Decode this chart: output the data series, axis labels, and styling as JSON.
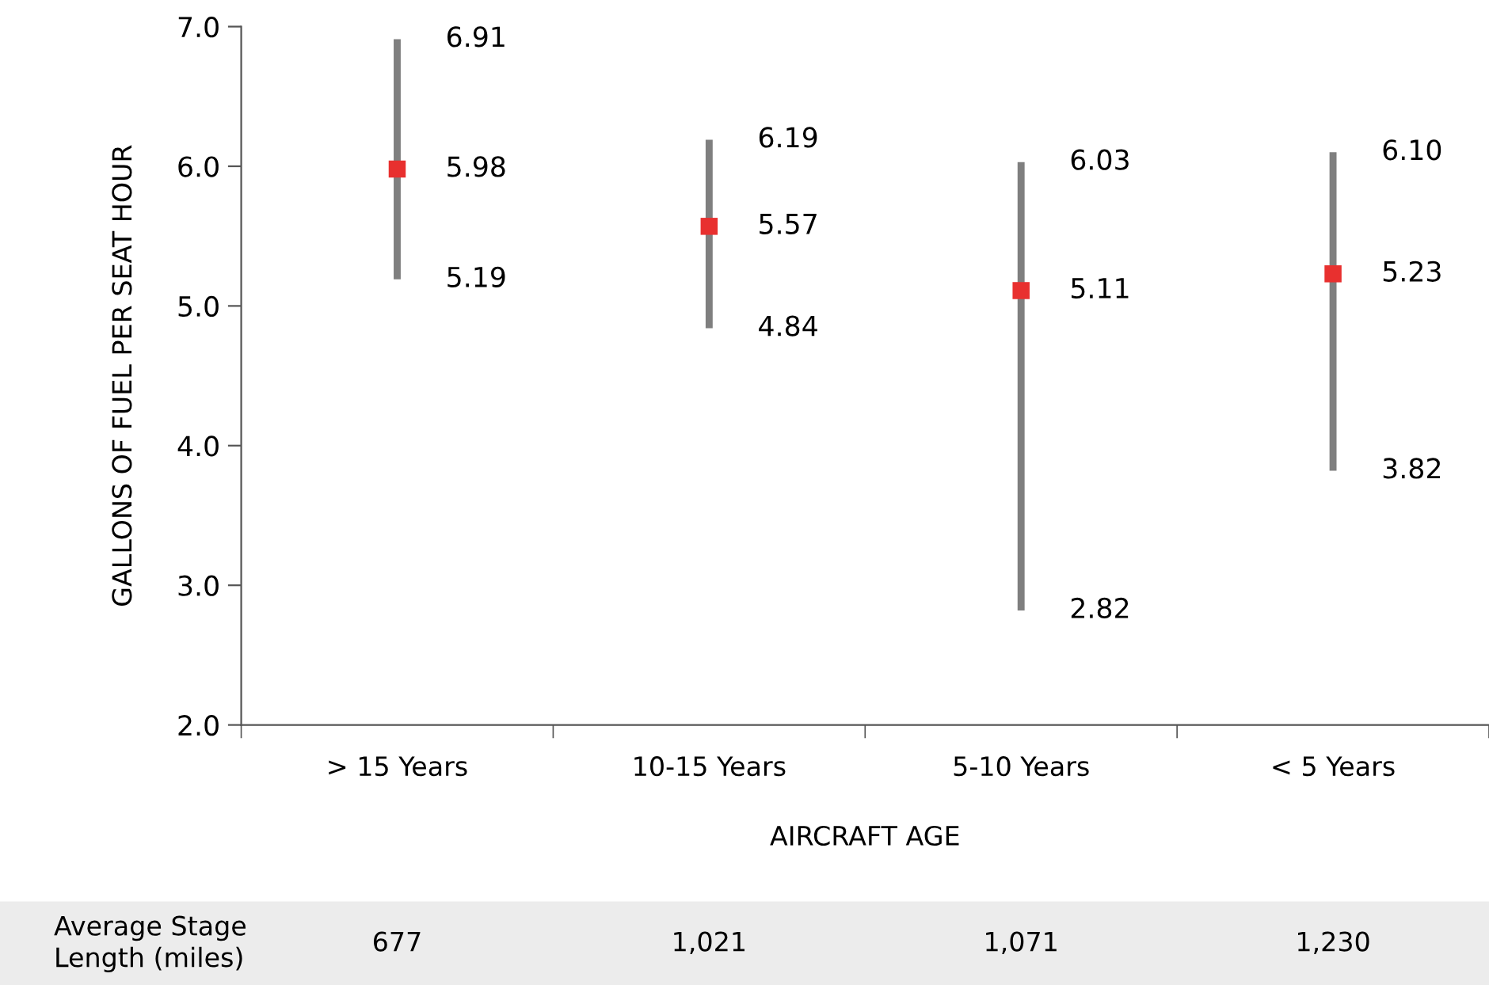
{
  "chart_data": {
    "type": "scatter",
    "xlabel": "AIRCRAFT AGE",
    "ylabel": "GALLONS OF FUEL PER SEAT HOUR",
    "categories": [
      "> 15 Years",
      "10-15 Years",
      "5-10 Years",
      "< 5 Years"
    ],
    "series": [
      {
        "color": "#e8302f",
        "values": [
          5.98,
          5.57,
          5.11,
          5.23
        ],
        "errors": [
          [
            5.19,
            6.91
          ],
          [
            4.84,
            6.19
          ],
          [
            2.82,
            6.03
          ],
          [
            3.82,
            6.1
          ]
        ]
      }
    ],
    "ylim": [
      2,
      7
    ],
    "yticks": [
      {
        "value": 2,
        "label": "2.0"
      },
      {
        "value": 3,
        "label": "3.0"
      },
      {
        "value": 4,
        "label": "4.0"
      },
      {
        "value": 5,
        "label": "5.0"
      },
      {
        "value": 6,
        "label": "6.0"
      },
      {
        "value": 7,
        "label": "7.0"
      }
    ],
    "marker": "square",
    "data_labels": true,
    "grid": false,
    "annotations": [
      "Average Stage\nLength (miles)",
      "677",
      "1,021",
      "1,071",
      "1,230",
      {
        "text": "6.91",
        "x": "> 15 Years",
        "y": 6.91
      },
      {
        "text": "5.19",
        "x": "> 15 Years",
        "y": 5.19
      },
      {
        "text": "6.19",
        "x": "10-15 Years",
        "y": 6.19
      },
      {
        "text": "4.84",
        "x": "10-15 Years",
        "y": 4.84
      },
      {
        "text": "6.03",
        "x": "5-10 Years",
        "y": 6.03
      },
      {
        "text": "2.82",
        "x": "5-10 Years",
        "y": 2.82
      },
      {
        "text": "6.10",
        "x": "< 5 Years",
        "y": 6.1
      },
      {
        "text": "3.82",
        "x": "< 5 Years",
        "y": 3.82
      }
    ]
  }
}
